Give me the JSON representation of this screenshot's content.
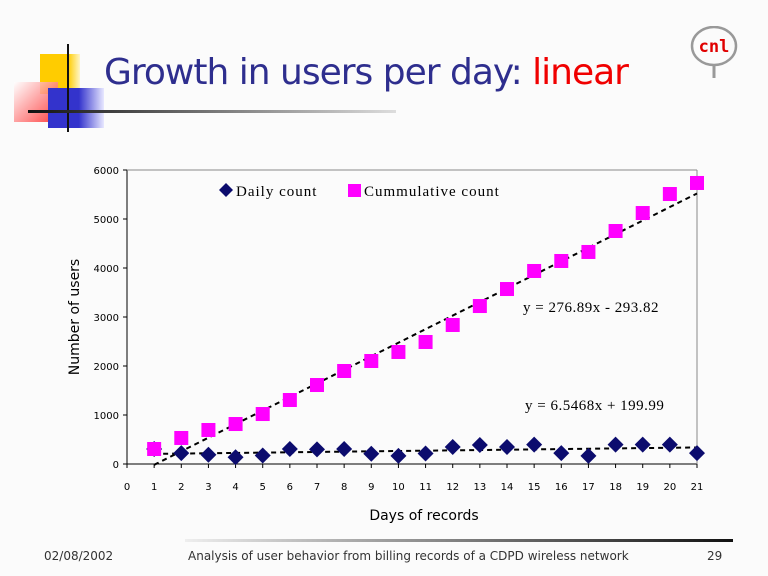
{
  "slide": {
    "title_main": "Growth in users per day: ",
    "title_highlight": "linear",
    "logo_text": "cnl",
    "footer": {
      "date": "02/08/2002",
      "caption": "Analysis of user behavior from billing records of a CDPD wireless network",
      "page": "29"
    }
  },
  "chart_data": {
    "type": "scatter",
    "title": "",
    "xlabel": "Days of records",
    "ylabel": "Number of users",
    "xlim": [
      0,
      21
    ],
    "ylim": [
      0,
      6000
    ],
    "xticks": [
      0,
      1,
      2,
      3,
      4,
      5,
      6,
      7,
      8,
      9,
      10,
      11,
      12,
      13,
      14,
      15,
      16,
      17,
      18,
      19,
      20,
      21
    ],
    "yticks": [
      0,
      1000,
      2000,
      3000,
      4000,
      5000,
      6000
    ],
    "grid": false,
    "legend_position": "top",
    "series": [
      {
        "name": "Daily count",
        "marker": "diamond",
        "color": "#0c0c6e",
        "x": [
          1,
          2,
          3,
          4,
          5,
          6,
          7,
          8,
          9,
          10,
          11,
          12,
          13,
          14,
          15,
          16,
          17,
          18,
          19,
          20,
          21
        ],
        "y": [
          306,
          222,
          188,
          139,
          174,
          306,
          299,
          306,
          208,
          167,
          215,
          347,
          389,
          347,
          396,
          222,
          167,
          396,
          396,
          396,
          222
        ],
        "trendline": {
          "slope": 6.5468,
          "intercept": 199.99,
          "label": "y = 6.5468x + 199.99"
        }
      },
      {
        "name": "Cummulative count",
        "marker": "square",
        "color": "#ff00ff",
        "x": [
          1,
          2,
          3,
          4,
          5,
          6,
          7,
          8,
          9,
          10,
          11,
          12,
          13,
          14,
          15,
          16,
          17,
          18,
          19,
          20,
          21
        ],
        "y": [
          306,
          531,
          694,
          816,
          1020,
          1306,
          1612,
          1898,
          2102,
          2286,
          2490,
          2837,
          3224,
          3571,
          3939,
          4143,
          4327,
          4755,
          5122,
          5510,
          5735
        ],
        "trendline": {
          "slope": 276.89,
          "intercept": -293.82,
          "label": "y = 276.89x - 293.82"
        }
      }
    ]
  }
}
